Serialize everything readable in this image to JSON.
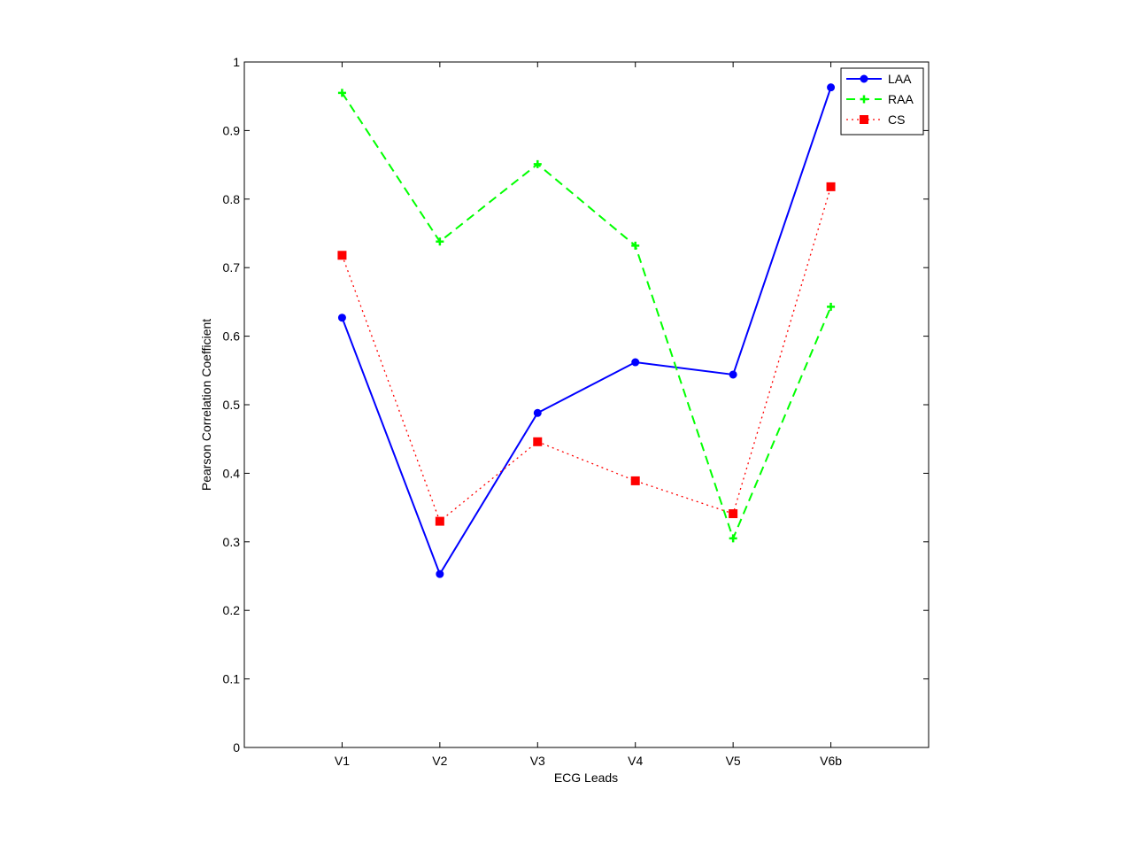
{
  "chart_data": {
    "type": "line",
    "title": "",
    "xlabel": "ECG Leads",
    "ylabel": "Pearson Correlation Coefficient",
    "categories": [
      "V1",
      "V2",
      "V3",
      "V4",
      "V5",
      "V6b"
    ],
    "xlim": [
      0,
      7
    ],
    "ylim": [
      0,
      1
    ],
    "yticks": [
      "0",
      "0.1",
      "0.2",
      "0.3",
      "0.4",
      "0.5",
      "0.6",
      "0.7",
      "0.8",
      "0.9",
      "1"
    ],
    "grid": false,
    "legend_position": "top-right",
    "series": [
      {
        "name": "LAA",
        "values": [
          0.627,
          0.253,
          0.488,
          0.562,
          0.544,
          0.963
        ],
        "color": "#0000ff",
        "line_style": "solid",
        "marker": "circle"
      },
      {
        "name": "RAA",
        "values": [
          0.955,
          0.738,
          0.851,
          0.732,
          0.305,
          0.643
        ],
        "color": "#00ff00",
        "line_style": "dashed",
        "marker": "plus"
      },
      {
        "name": "CS",
        "values": [
          0.718,
          0.33,
          0.446,
          0.389,
          0.341,
          0.818
        ],
        "color": "#ff0000",
        "line_style": "dotted",
        "marker": "square"
      }
    ]
  }
}
